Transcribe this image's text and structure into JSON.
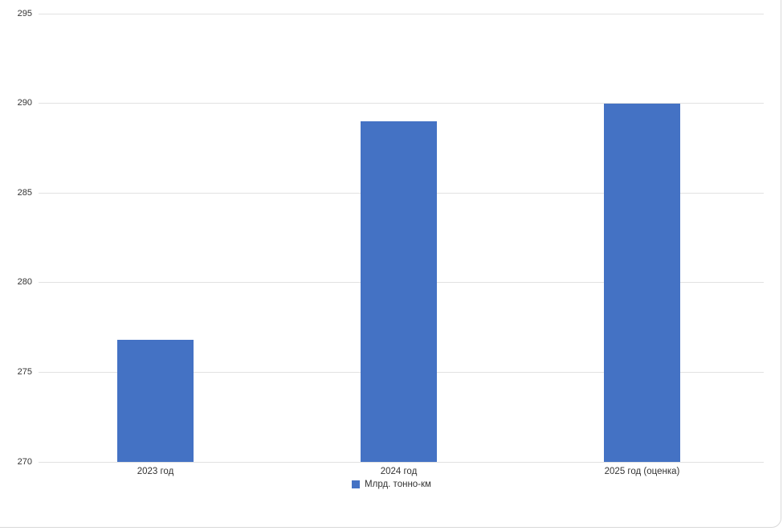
{
  "chart_data": {
    "type": "bar",
    "categories": [
      "2023 год",
      "2024 год",
      "2025 год (оценка)"
    ],
    "series": [
      {
        "name": "Млрд. тонно-км",
        "values": [
          276.8,
          289,
          290
        ]
      }
    ],
    "title": "",
    "xlabel": "",
    "ylabel": "",
    "ylim": [
      270,
      295
    ],
    "yticks": [
      270,
      275,
      280,
      285,
      290,
      295
    ],
    "grid": true,
    "legend_position": "bottom",
    "bar_color": "#4472C4",
    "gridline_color": "#e2e2e2",
    "frame_border_color": "#d9d9d9",
    "text_color": "#333333"
  }
}
